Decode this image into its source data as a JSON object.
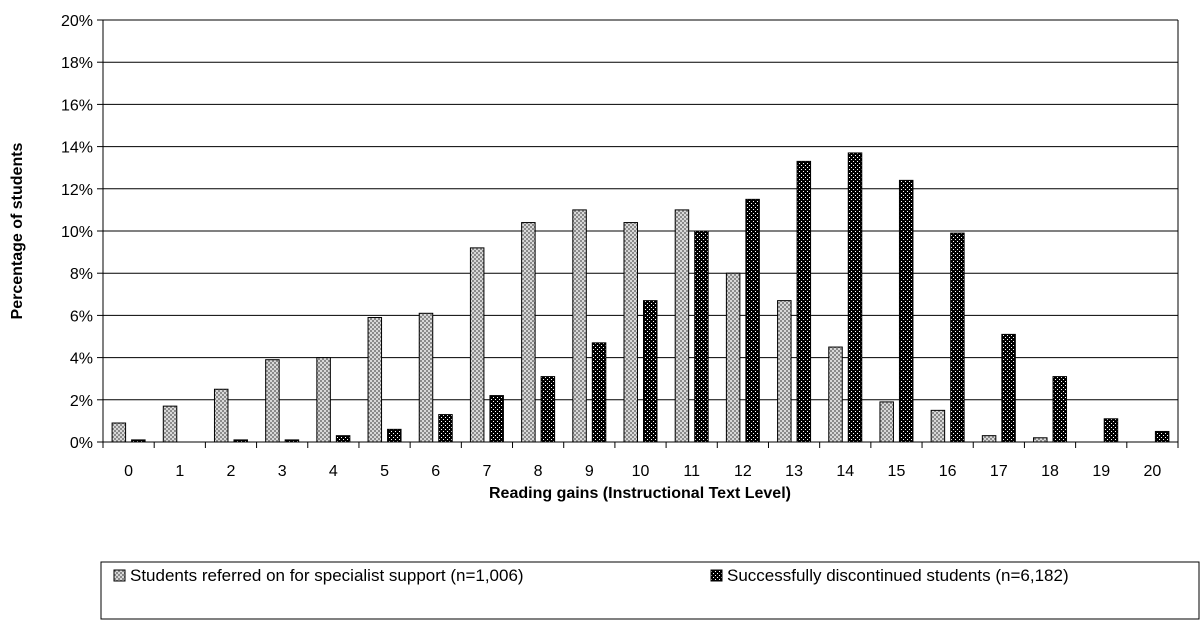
{
  "chart_data": {
    "type": "bar",
    "title": "",
    "xlabel": "Reading gains (Instructional Text Level)",
    "ylabel": "Percentage of students",
    "ylim": [
      0,
      20
    ],
    "ytick_step": 2,
    "ytick_labels": [
      "0%",
      "2%",
      "4%",
      "6%",
      "8%",
      "10%",
      "12%",
      "14%",
      "16%",
      "18%",
      "20%"
    ],
    "grid": "horizontal",
    "legend_position": "bottom",
    "categories": [
      "0",
      "1",
      "2",
      "3",
      "4",
      "5",
      "6",
      "7",
      "8",
      "9",
      "10",
      "11",
      "12",
      "13",
      "14",
      "15",
      "16",
      "17",
      "18",
      "19",
      "20"
    ],
    "series": [
      {
        "name": "Students referred on for specialist support (n=1,006)",
        "color": "#b4b4b4",
        "pattern": "light-checker",
        "values": [
          0.9,
          1.7,
          2.5,
          3.9,
          4.0,
          5.9,
          6.1,
          9.2,
          10.4,
          11.0,
          10.4,
          11.0,
          8.0,
          6.7,
          4.5,
          1.9,
          1.5,
          0.3,
          0.2,
          0,
          0
        ]
      },
      {
        "name": "Successfully discontinued students (n=6,182)",
        "color": "#222222",
        "pattern": "dark-checker",
        "values": [
          0.1,
          0,
          0.1,
          0.1,
          0.3,
          0.6,
          1.3,
          2.2,
          3.1,
          4.7,
          6.7,
          10.0,
          11.5,
          13.3,
          13.7,
          12.4,
          9.9,
          5.1,
          3.1,
          1.1,
          0.5
        ]
      }
    ]
  }
}
